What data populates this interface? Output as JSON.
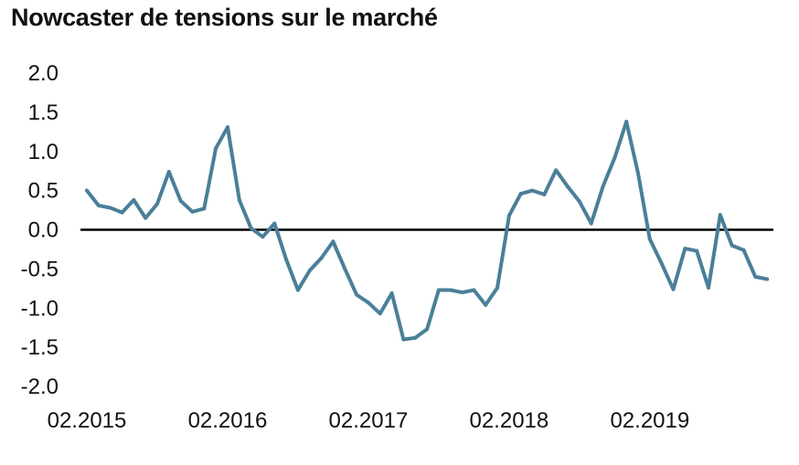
{
  "chart_data": {
    "type": "line",
    "title": "Nowcaster de tensions sur le marché",
    "xlabel": "",
    "ylabel": "",
    "ylim": [
      -2.0,
      2.0
    ],
    "yticks": [
      "2.0",
      "1.5",
      "1.0",
      "0.5",
      "0.0",
      "-0.5",
      "-1.0",
      "-1.5",
      "-2.0"
    ],
    "xticks": [
      {
        "label": "02.2015",
        "month_index": 0
      },
      {
        "label": "02.2016",
        "month_index": 12
      },
      {
        "label": "02.2017",
        "month_index": 24
      },
      {
        "label": "02.2018",
        "month_index": 36
      },
      {
        "label": "02.2019",
        "month_index": 48
      }
    ],
    "zero_line": true,
    "grid": false,
    "series": [
      {
        "color": "#4a7f99",
        "values": [
          0.5,
          0.31,
          0.28,
          0.22,
          0.38,
          0.15,
          0.33,
          0.74,
          0.37,
          0.23,
          0.27,
          1.04,
          1.31,
          0.38,
          0.02,
          -0.09,
          0.08,
          -0.38,
          -0.77,
          -0.52,
          -0.36,
          -0.15,
          -0.5,
          -0.83,
          -0.93,
          -1.07,
          -0.81,
          -1.4,
          -1.38,
          -1.27,
          -0.77,
          -0.77,
          -0.8,
          -0.77,
          -0.96,
          -0.74,
          0.18,
          0.46,
          0.5,
          0.45,
          0.76,
          0.55,
          0.36,
          0.08,
          0.55,
          0.92,
          1.38,
          0.72,
          -0.12,
          -0.43,
          -0.76,
          -0.24,
          -0.27,
          -0.74,
          0.19,
          -0.2,
          -0.26,
          -0.6,
          -0.63
        ]
      }
    ]
  }
}
